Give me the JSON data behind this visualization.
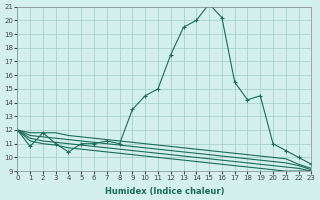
{
  "xlabel": "Humidex (Indice chaleur)",
  "background_color": "#d4f0ee",
  "grid_color": "#a0ccc8",
  "line_color": "#1a6b5a",
  "xlim": [
    0,
    23
  ],
  "ylim": [
    9,
    21
  ],
  "xticks": [
    0,
    1,
    2,
    3,
    4,
    5,
    6,
    7,
    8,
    9,
    10,
    11,
    12,
    13,
    14,
    15,
    16,
    17,
    18,
    19,
    20,
    21,
    22,
    23
  ],
  "yticks": [
    9,
    10,
    11,
    12,
    13,
    14,
    15,
    16,
    17,
    18,
    19,
    20,
    21
  ],
  "series": [
    {
      "x": [
        0,
        1,
        2,
        3,
        4,
        5,
        6,
        7,
        8,
        9,
        10,
        11,
        12,
        13,
        14,
        15,
        16,
        17,
        18,
        19,
        20,
        21,
        22,
        23
      ],
      "y": [
        12.0,
        10.8,
        11.8,
        11.0,
        10.4,
        11.0,
        11.0,
        11.2,
        11.0,
        13.5,
        14.5,
        15.0,
        17.5,
        19.5,
        20.0,
        21.2,
        20.2,
        15.5,
        14.2,
        14.5,
        11.0,
        10.5,
        10.0,
        9.5
      ],
      "marker": "+"
    },
    {
      "x": [
        0,
        1,
        2,
        3,
        4,
        5,
        6,
        7,
        8,
        9,
        10,
        11,
        12,
        13,
        14,
        15,
        16,
        17,
        18,
        19,
        20,
        21,
        22,
        23
      ],
      "y": [
        12.0,
        11.8,
        11.8,
        11.8,
        11.6,
        11.5,
        11.4,
        11.3,
        11.2,
        11.1,
        11.0,
        10.9,
        10.8,
        10.7,
        10.6,
        10.5,
        10.4,
        10.3,
        10.2,
        10.1,
        10.0,
        9.9,
        9.5,
        9.2
      ],
      "marker": null
    },
    {
      "x": [
        0,
        1,
        2,
        3,
        4,
        5,
        6,
        7,
        8,
        9,
        10,
        11,
        12,
        13,
        14,
        15,
        16,
        17,
        18,
        19,
        20,
        21,
        22,
        23
      ],
      "y": [
        12.0,
        11.6,
        11.5,
        11.4,
        11.3,
        11.2,
        11.1,
        11.0,
        10.9,
        10.8,
        10.7,
        10.6,
        10.5,
        10.4,
        10.3,
        10.2,
        10.1,
        10.0,
        9.9,
        9.8,
        9.7,
        9.6,
        9.4,
        9.1
      ],
      "marker": null
    },
    {
      "x": [
        0,
        1,
        2,
        3,
        4,
        5,
        6,
        7,
        8,
        9,
        10,
        11,
        12,
        13,
        14,
        15,
        16,
        17,
        18,
        19,
        20,
        21,
        22,
        23
      ],
      "y": [
        12.0,
        11.4,
        11.2,
        11.1,
        11.0,
        10.9,
        10.8,
        10.7,
        10.6,
        10.5,
        10.4,
        10.3,
        10.2,
        10.1,
        10.0,
        9.9,
        9.8,
        9.7,
        9.6,
        9.5,
        9.4,
        9.3,
        9.2,
        9.0
      ],
      "marker": null
    },
    {
      "x": [
        0,
        1,
        2,
        3,
        4,
        5,
        6,
        7,
        8,
        9,
        10,
        11,
        12,
        13,
        14,
        15,
        16,
        17,
        18,
        19,
        20,
        21,
        22,
        23
      ],
      "y": [
        12.0,
        11.2,
        11.0,
        10.9,
        10.7,
        10.6,
        10.5,
        10.4,
        10.3,
        10.2,
        10.1,
        10.0,
        9.9,
        9.8,
        9.7,
        9.6,
        9.5,
        9.4,
        9.3,
        9.2,
        9.1,
        9.0,
        9.0,
        9.0
      ],
      "marker": null
    }
  ]
}
